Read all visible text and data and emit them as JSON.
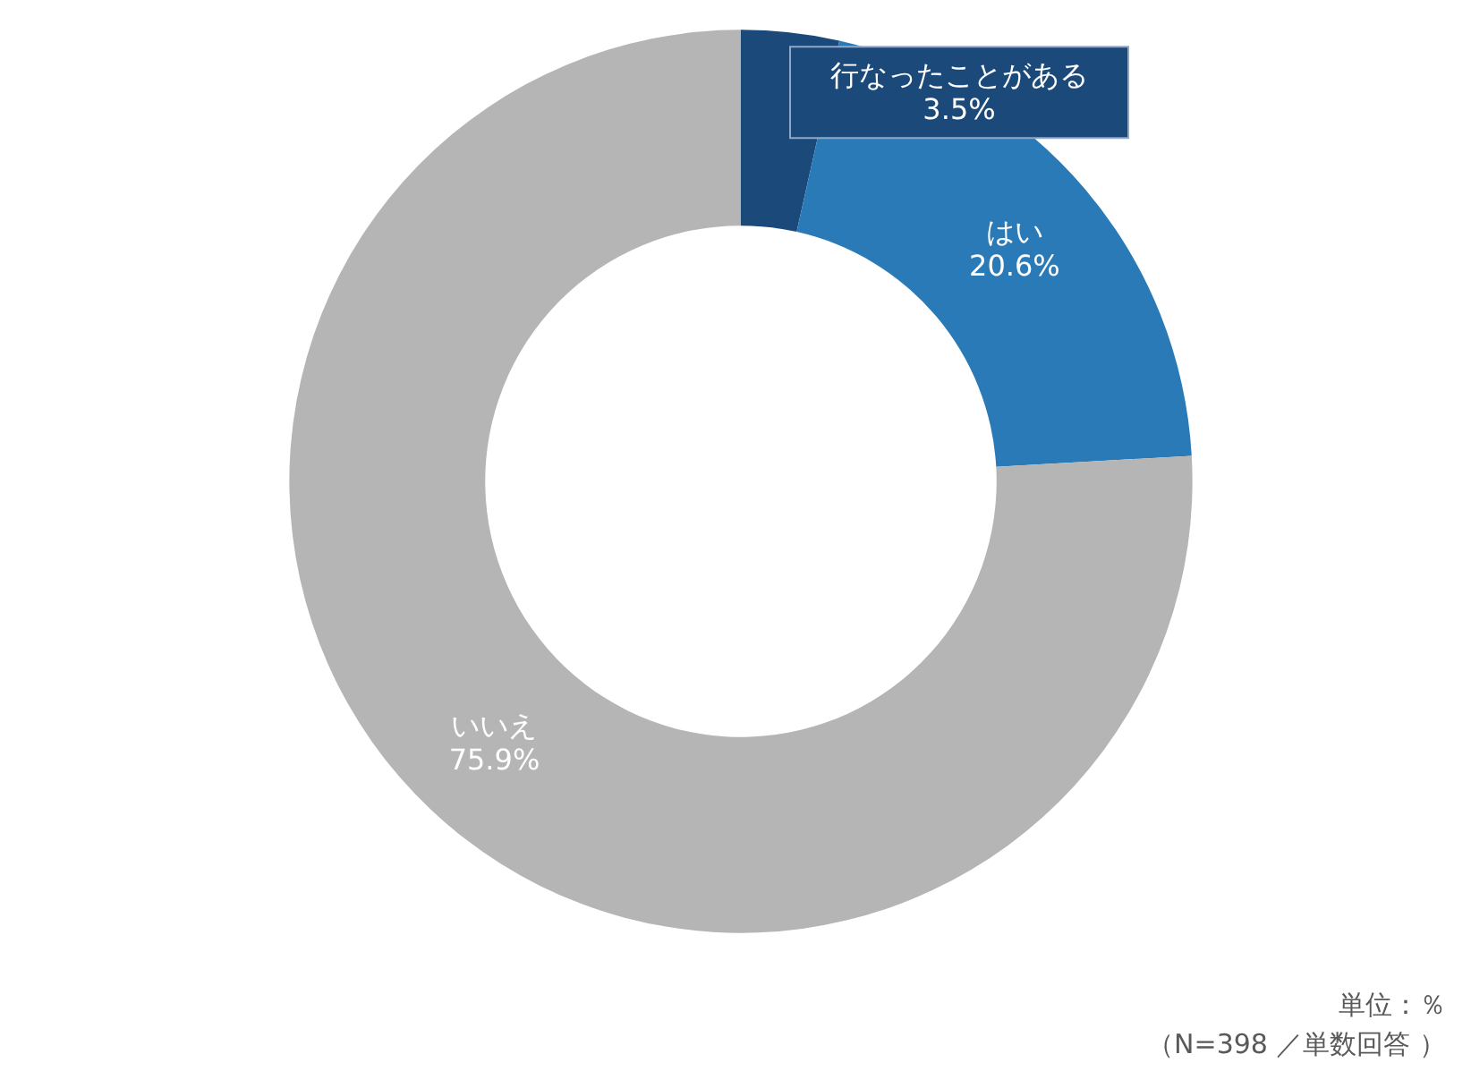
{
  "chart_data": {
    "type": "donut",
    "categories": [
      "行なったことがある",
      "はい",
      "いいえ"
    ],
    "values": [
      3.5,
      20.6,
      75.9
    ],
    "colors": [
      "#1b4a7a",
      "#2a7ab8",
      "#b5b5b5"
    ],
    "value_labels": [
      "3.5%",
      "20.6%",
      "75.9%"
    ],
    "legend": false,
    "annotations": [
      "単位：％",
      "（N=398 ／単数回答 ）"
    ]
  }
}
